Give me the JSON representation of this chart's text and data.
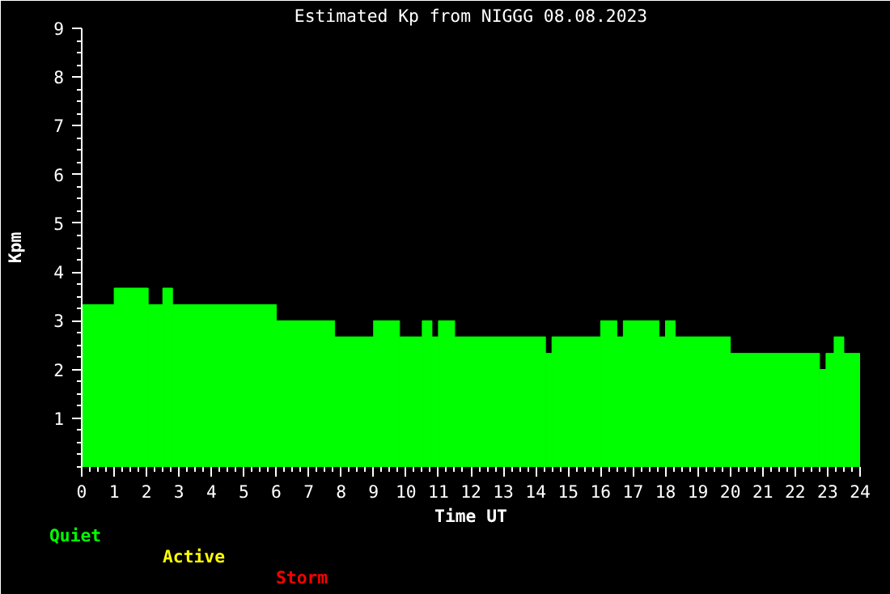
{
  "chart_data": {
    "type": "histogram",
    "title": "Estimated Kp from NIGGG 08.08.2023",
    "xlabel": "Time UT",
    "ylabel": "Kpm",
    "bins": [
      0,
      1,
      2.05,
      2.5,
      2.8,
      6,
      7.8,
      9,
      9.8,
      10.5,
      10.8,
      11,
      11.5,
      14.3,
      14.5,
      16,
      16.5,
      16.7,
      17.8,
      18,
      18.3,
      20,
      22.75,
      22.95,
      23.2,
      23.5,
      24
    ],
    "values": [
      3.33,
      3.67,
      3.33,
      3.67,
      3.33,
      3,
      2.67,
      3,
      2.67,
      3,
      2.67,
      3,
      2.67,
      2.33,
      2.67,
      3,
      2.67,
      3,
      2.67,
      3,
      2.67,
      2.33,
      2,
      2.33,
      2.67,
      2.33
    ],
    "color": "#00ff00",
    "xlim": [
      0,
      24
    ],
    "xticks": [
      0,
      1,
      2,
      3,
      4,
      5,
      6,
      7,
      8,
      9,
      10,
      11,
      12,
      13,
      14,
      15,
      16,
      17,
      18,
      19,
      20,
      21,
      22,
      23,
      24
    ],
    "ylim": [
      0,
      9
    ],
    "yticks": [
      1,
      2,
      3,
      4,
      5,
      6,
      7,
      8,
      9
    ],
    "grid": false,
    "annotations": [
      "Quiet",
      "Active",
      "Storm"
    ]
  }
}
